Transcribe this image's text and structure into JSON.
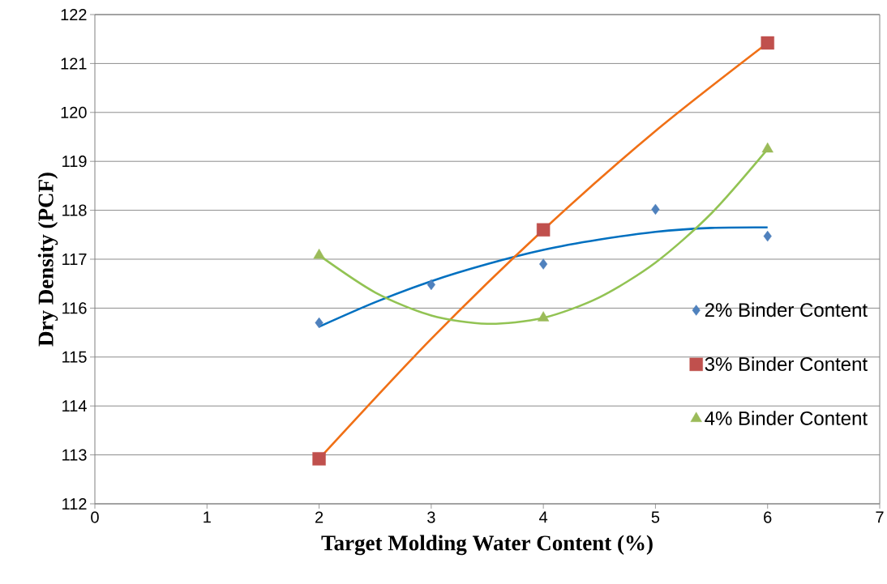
{
  "chart_data": {
    "type": "scatter",
    "xlabel": "Target Molding Water Content (%)",
    "ylabel": "Dry Density (PCF)",
    "xlim": [
      0,
      7
    ],
    "xticks": [
      0,
      1,
      2,
      3,
      4,
      5,
      6,
      7
    ],
    "ylim": [
      112,
      122
    ],
    "yticks": [
      112,
      113,
      114,
      115,
      116,
      117,
      118,
      119,
      120,
      121,
      122
    ],
    "grid": "y",
    "legend": "right",
    "series": [
      {
        "name": "2% Binder Content",
        "color": "#4f81bd",
        "marker": "diamond",
        "x": [
          2,
          3,
          4,
          5,
          6
        ],
        "values": [
          115.7,
          116.48,
          116.9,
          118.02,
          117.47
        ]
      },
      {
        "name": "3% Binder Content",
        "color": "#c0504d",
        "marker": "square",
        "x": [
          2,
          4,
          6
        ],
        "values": [
          112.92,
          117.6,
          121.42
        ]
      },
      {
        "name": "4% Binder Content",
        "color": "#9bbb59",
        "marker": "triangle",
        "x": [
          2,
          4,
          6
        ],
        "values": [
          117.08,
          115.8,
          119.25
        ]
      },
      {
        "type": "line",
        "color": "#0070c0",
        "x": [
          2,
          2.5,
          3,
          3.5,
          4,
          4.5,
          5,
          5.5,
          6
        ],
        "values": [
          115.62,
          116.12,
          116.55,
          116.9,
          117.19,
          117.4,
          117.56,
          117.64,
          117.65
        ]
      },
      {
        "type": "line",
        "color": "#f07016",
        "x": [
          2,
          3,
          4,
          5,
          6
        ],
        "values": [
          112.92,
          115.37,
          117.6,
          119.62,
          121.42
        ]
      },
      {
        "type": "line",
        "color": "#92c353",
        "x": [
          2,
          2.5,
          3,
          3.5,
          4,
          4.5,
          5,
          5.5,
          6
        ],
        "values": [
          117.08,
          116.32,
          115.85,
          115.68,
          115.8,
          116.22,
          116.93,
          117.94,
          119.25
        ]
      }
    ]
  }
}
